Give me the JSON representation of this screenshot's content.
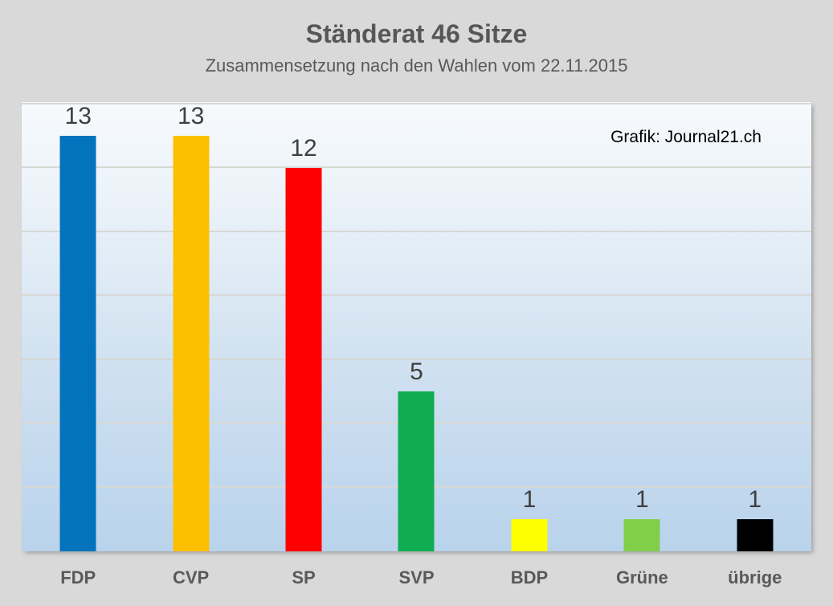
{
  "header": {
    "title": "Ständerat 46 Sitze",
    "subtitle": "Zusammensetzung nach den Wahlen vom 22.11.2015"
  },
  "chart_data": {
    "type": "bar",
    "title": "Ständerat 46 Sitze",
    "subtitle": "Zusammensetzung nach den Wahlen vom 22.11.2015",
    "annotation": "Grafik: Journal21.ch",
    "categories": [
      "FDP",
      "CVP",
      "SP",
      "SVP",
      "BDP",
      "Grüne",
      "übrige"
    ],
    "values": [
      13,
      13,
      12,
      5,
      1,
      1,
      1
    ],
    "total_seats": 46,
    "bar_colors": [
      "#0473bd",
      "#fcc001",
      "#fe0000",
      "#10ac4f",
      "#feff00",
      "#80ce4a",
      "#000000"
    ],
    "xlabel": "",
    "ylabel": "",
    "ylim": [
      0,
      14
    ],
    "gridline_step": 2,
    "grid": true,
    "legend": "none",
    "colors": {
      "title_text": "#575757",
      "value_label_text": "#3f3f3f",
      "category_label_text": "#595959",
      "gridline": "#d6d8d5",
      "plot_background_top": "#f7fafd",
      "plot_background_bottom": "#b9d3ec",
      "page_background": "#d9d9d9"
    }
  }
}
